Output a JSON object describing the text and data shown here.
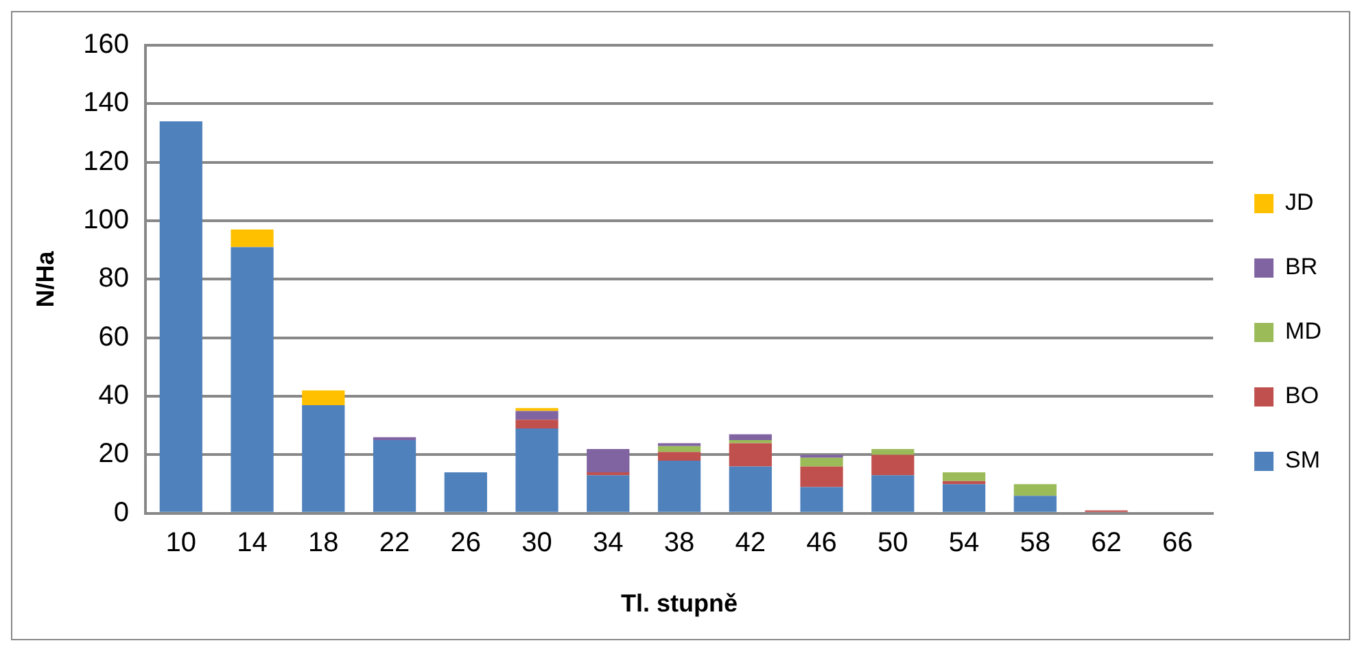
{
  "chart_data": {
    "type": "bar",
    "stacked": true,
    "xlabel": "Tl. stupně",
    "ylabel": "N/Ha",
    "categories": [
      "10",
      "14",
      "18",
      "22",
      "26",
      "30",
      "34",
      "38",
      "42",
      "46",
      "50",
      "54",
      "58",
      "62",
      "66"
    ],
    "series": [
      {
        "name": "SM",
        "color": "#4f81bd",
        "values": [
          134,
          91,
          37,
          25,
          14,
          29,
          13,
          18,
          16,
          9,
          13,
          10,
          6,
          0,
          0
        ]
      },
      {
        "name": "BO",
        "color": "#c0504d",
        "values": [
          0,
          0,
          0,
          0,
          0,
          3,
          1,
          3,
          8,
          7,
          7,
          1,
          0,
          1,
          0
        ]
      },
      {
        "name": "MD",
        "color": "#9bbb59",
        "values": [
          0,
          0,
          0,
          0,
          0,
          0,
          0,
          2,
          1,
          3,
          2,
          3,
          4,
          0,
          0
        ]
      },
      {
        "name": "BR",
        "color": "#8064a2",
        "values": [
          0,
          0,
          0,
          1,
          0,
          3,
          8,
          1,
          2,
          1,
          0,
          0,
          0,
          0,
          0
        ]
      },
      {
        "name": "JD",
        "color": "#ffc000",
        "values": [
          0,
          6,
          5,
          0,
          0,
          1,
          0,
          0,
          0,
          0,
          0,
          0,
          0,
          0,
          0
        ]
      }
    ],
    "ylim": [
      0,
      160
    ],
    "yticks": [
      0,
      20,
      40,
      60,
      80,
      100,
      120,
      140,
      160
    ],
    "grid": "y",
    "legend": "right"
  }
}
